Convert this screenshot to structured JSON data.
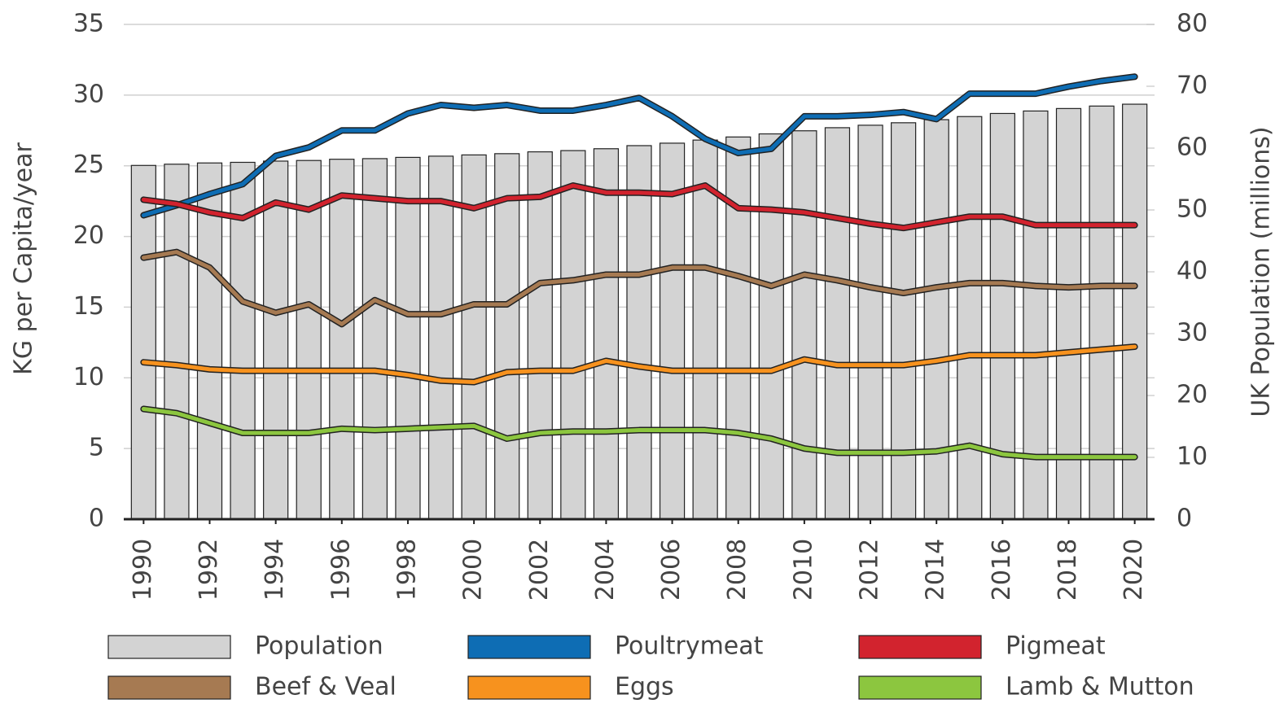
{
  "chart_data": {
    "type": "bar-line",
    "y_label": "KG per Capita/year",
    "y2_label": "UK Population (millions)",
    "x": [
      1990,
      1991,
      1992,
      1993,
      1994,
      1995,
      1996,
      1997,
      1998,
      1999,
      2000,
      2001,
      2002,
      2003,
      2004,
      2005,
      2006,
      2007,
      2008,
      2009,
      2010,
      2011,
      2012,
      2013,
      2014,
      2015,
      2016,
      2017,
      2018,
      2019,
      2020
    ],
    "xlim": [
      1989.4,
      2020.6
    ],
    "xticks": [
      1990,
      1992,
      1994,
      1996,
      1998,
      2000,
      2002,
      2004,
      2006,
      2008,
      2010,
      2012,
      2014,
      2016,
      2018,
      2020
    ],
    "ylim": [
      0,
      35
    ],
    "yticks": [
      0,
      5,
      10,
      15,
      20,
      25,
      30,
      35
    ],
    "y2lim": [
      0,
      80
    ],
    "y2ticks": [
      0,
      10,
      20,
      30,
      40,
      50,
      60,
      70,
      80
    ],
    "grid": true,
    "legend": "bottom",
    "series": [
      {
        "name": "Population",
        "type": "bar",
        "axis": "y2",
        "color": "#d3d3d3",
        "values": [
          57.2,
          57.4,
          57.6,
          57.7,
          57.9,
          58.0,
          58.2,
          58.3,
          58.5,
          58.7,
          58.9,
          59.1,
          59.4,
          59.6,
          59.9,
          60.4,
          60.8,
          61.3,
          61.8,
          62.3,
          62.8,
          63.3,
          63.7,
          64.1,
          64.6,
          65.1,
          65.6,
          66.0,
          66.4,
          66.8,
          67.1
        ]
      },
      {
        "name": "Poultrymeat",
        "type": "line",
        "color": "#0e6db4",
        "values": [
          21.5,
          22.2,
          23.0,
          23.7,
          25.7,
          26.3,
          27.5,
          27.5,
          28.7,
          29.3,
          29.1,
          29.3,
          28.9,
          28.9,
          29.3,
          29.8,
          28.5,
          26.9,
          25.9,
          26.2,
          28.5,
          28.5,
          28.6,
          28.8,
          28.3,
          30.1,
          30.1,
          30.1,
          30.6,
          31.0,
          31.3
        ]
      },
      {
        "name": "Pigmeat",
        "type": "line",
        "color": "#d2232e",
        "values": [
          22.6,
          22.3,
          21.7,
          21.3,
          22.4,
          21.9,
          22.9,
          22.7,
          22.5,
          22.5,
          22.0,
          22.7,
          22.8,
          23.6,
          23.1,
          23.1,
          23.0,
          23.6,
          22.0,
          21.9,
          21.7,
          21.3,
          20.9,
          20.6,
          21.0,
          21.4,
          21.4,
          20.8,
          20.8,
          20.8,
          20.8
        ]
      },
      {
        "name": "Beef & Veal",
        "type": "line",
        "color": "#a67a52",
        "values": [
          18.5,
          18.9,
          17.8,
          15.4,
          14.6,
          15.2,
          13.8,
          15.5,
          14.5,
          14.5,
          15.2,
          15.2,
          16.7,
          16.9,
          17.3,
          17.3,
          17.8,
          17.8,
          17.2,
          16.5,
          17.3,
          16.9,
          16.4,
          16.0,
          16.4,
          16.7,
          16.7,
          16.5,
          16.4,
          16.5,
          16.5
        ]
      },
      {
        "name": "Eggs",
        "type": "line",
        "color": "#f7921e",
        "values": [
          11.1,
          10.9,
          10.6,
          10.5,
          10.5,
          10.5,
          10.5,
          10.5,
          10.2,
          9.8,
          9.7,
          10.4,
          10.5,
          10.5,
          11.2,
          10.8,
          10.5,
          10.5,
          10.5,
          10.5,
          11.3,
          10.9,
          10.9,
          10.9,
          11.2,
          11.6,
          11.6,
          11.6,
          11.8,
          12.0,
          12.2
        ]
      },
      {
        "name": "Lamb & Mutton",
        "type": "line",
        "color": "#8cc63f",
        "values": [
          7.8,
          7.5,
          6.8,
          6.1,
          6.1,
          6.1,
          6.4,
          6.3,
          6.4,
          6.5,
          6.6,
          5.7,
          6.1,
          6.2,
          6.2,
          6.3,
          6.3,
          6.3,
          6.1,
          5.7,
          5.0,
          4.7,
          4.7,
          4.7,
          4.8,
          5.2,
          4.6,
          4.4,
          4.4,
          4.4,
          4.4
        ]
      }
    ]
  }
}
